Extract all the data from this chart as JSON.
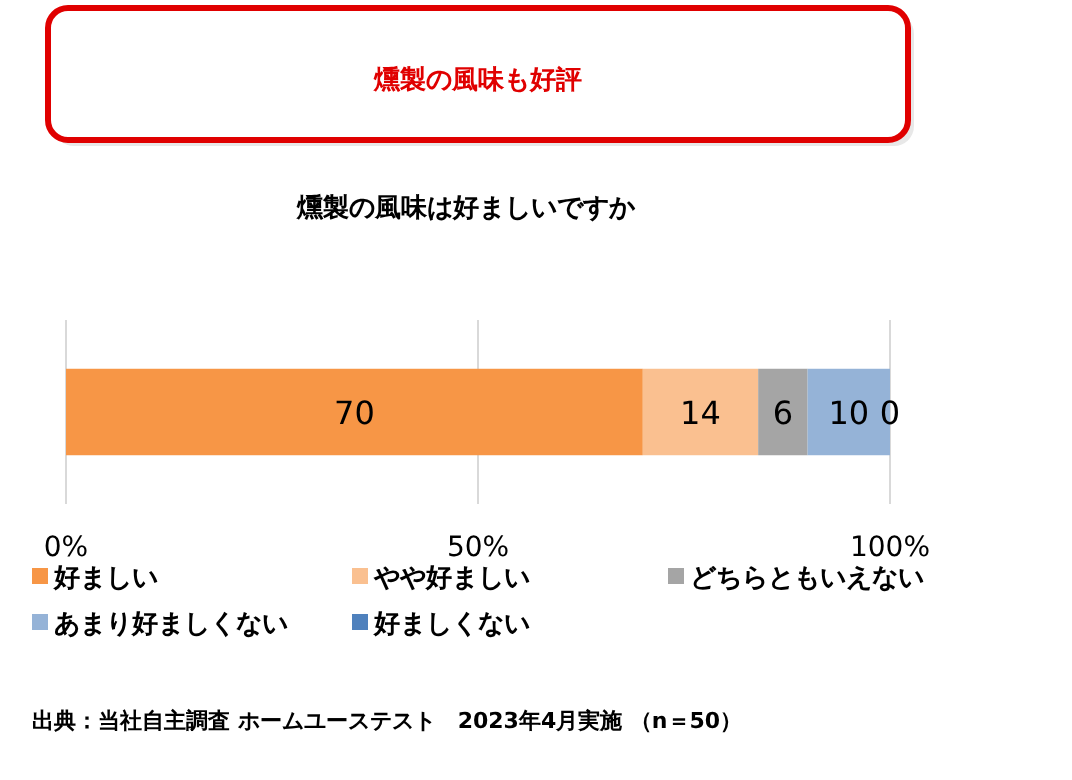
{
  "chart_data": {
    "type": "bar",
    "title": "燻製の風味も好評",
    "subtitle": "燻製の風味は好ましいですか",
    "categories": [
      null
    ],
    "series": [
      {
        "name": "好ましい",
        "color": "#f79646",
        "values": [
          70
        ]
      },
      {
        "name": "やや好ましい",
        "color": "#fac090",
        "values": [
          14
        ]
      },
      {
        "name": "どちらともいえない",
        "color": "#a5a5a5",
        "values": [
          6
        ]
      },
      {
        "name": "あまり好ましくない",
        "color": "#95b3d7",
        "values": [
          10
        ]
      },
      {
        "name": "好ましくない",
        "color": "#4f81bd",
        "values": [
          0
        ]
      }
    ],
    "stacked": true,
    "orientation": "horizontal",
    "xlim": [
      0,
      100
    ],
    "xticks": [
      {
        "value": 0,
        "label": "0%"
      },
      {
        "value": 50,
        "label": "50%"
      },
      {
        "value": 100,
        "label": "100%"
      }
    ],
    "grid": "x",
    "legend": "bottom",
    "data_labels": true,
    "annotations": [
      "出典：当社自主調査 ホームユーステスト　2023年4月実施 （n＝50）"
    ]
  }
}
